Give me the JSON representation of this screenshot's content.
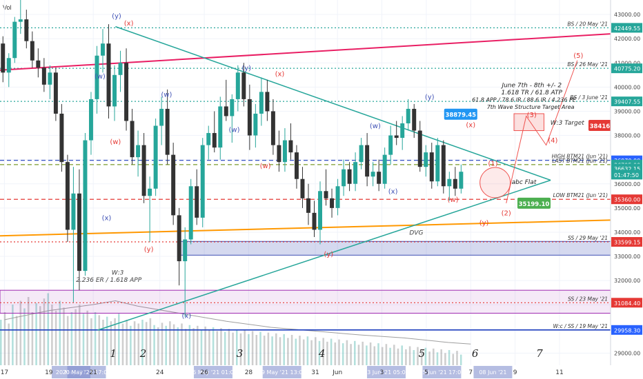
{
  "header": {
    "indicator_label": "Vol"
  },
  "chart_data": {
    "type": "candlestick",
    "title": "",
    "xlabel": "",
    "ylabel": "",
    "ylim": [
      28500,
      43600
    ],
    "y_ticks": [
      29000,
      30000,
      31000,
      32000,
      33000,
      34000,
      35000,
      36000,
      37000,
      38000,
      39000,
      40000,
      41000,
      42000,
      43000
    ],
    "x_ticks": [
      {
        "label": "17",
        "x": 0
      },
      {
        "label": "19",
        "x": 2
      },
      {
        "label": "21",
        "x": 4
      },
      {
        "label": "24",
        "x": 7
      },
      {
        "label": "26",
        "x": 9
      },
      {
        "label": "28",
        "x": 11
      },
      {
        "label": "31",
        "x": 14
      },
      {
        "label": "Jun",
        "x": 15
      },
      {
        "label": "3",
        "x": 17
      },
      {
        "label": "5",
        "x": 19
      },
      {
        "label": "7",
        "x": 21
      },
      {
        "label": "9",
        "x": 23
      },
      {
        "label": "11",
        "x": 25
      }
    ],
    "x_range": [
      -0.2,
      27.3
    ],
    "last_candle_x": 20.7,
    "date_highlights": [
      {
        "label": "20 May '21",
        "x": 3.0
      },
      {
        "label": "20 May '21 17:00",
        "x": 3.7
      },
      {
        "label": "26 May '21 01:00",
        "x": 9.4
      },
      {
        "label": "29 May '21 13:00",
        "x": 12.5
      },
      {
        "label": "03 Jun '21 05:00",
        "x": 17.2
      },
      {
        "label": "05 Jun '21 17:00",
        "x": 19.7
      },
      {
        "label": "08 Jun '21",
        "x": 22.0
      }
    ],
    "candles_ohlc": [
      [
        41800,
        42100,
        40200,
        40600
      ],
      [
        40600,
        41400,
        40000,
        41200
      ],
      [
        41200,
        42900,
        41000,
        42700
      ],
      [
        42700,
        43600,
        42200,
        42800
      ],
      [
        42800,
        43200,
        41600,
        41900
      ],
      [
        41900,
        42300,
        40800,
        41100
      ],
      [
        41100,
        41600,
        40400,
        40800
      ],
      [
        40800,
        41200,
        39800,
        40100
      ],
      [
        40100,
        40900,
        39500,
        40600
      ],
      [
        40600,
        40800,
        38600,
        38900
      ],
      [
        38900,
        39300,
        36500,
        36900
      ],
      [
        36900,
        37200,
        33600,
        34100
      ],
      [
        34100,
        36700,
        31100,
        35600
      ],
      [
        35600,
        36600,
        31600,
        32400
      ],
      [
        32400,
        38100,
        32200,
        37800
      ],
      [
        37800,
        39800,
        37200,
        39500
      ],
      [
        39500,
        41700,
        38900,
        41300
      ],
      [
        41300,
        42400,
        40600,
        41800
      ],
      [
        41800,
        42600,
        38700,
        39200
      ],
      [
        39200,
        40900,
        38600,
        40500
      ],
      [
        40500,
        41500,
        39800,
        41000
      ],
      [
        41000,
        41600,
        38200,
        38600
      ],
      [
        38600,
        39100,
        36800,
        37100
      ],
      [
        37100,
        38200,
        36300,
        37600
      ],
      [
        37600,
        38100,
        35200,
        35500
      ],
      [
        35500,
        36300,
        33600,
        35800
      ],
      [
        35800,
        38700,
        35500,
        38400
      ],
      [
        38400,
        39600,
        37600,
        39100
      ],
      [
        39100,
        39900,
        36800,
        37200
      ],
      [
        37200,
        37700,
        34300,
        34700
      ],
      [
        34700,
        35000,
        31800,
        32800
      ],
      [
        32800,
        34200,
        30500,
        33700
      ],
      [
        33700,
        36200,
        33500,
        35900
      ],
      [
        35900,
        36600,
        34300,
        34600
      ],
      [
        34600,
        37900,
        34200,
        37600
      ],
      [
        37600,
        38400,
        37000,
        38100
      ],
      [
        38100,
        39000,
        37300,
        37500
      ],
      [
        37500,
        39600,
        37000,
        39200
      ],
      [
        39200,
        40300,
        38600,
        38800
      ],
      [
        38800,
        39700,
        37700,
        39500
      ],
      [
        39500,
        40900,
        39000,
        40600
      ],
      [
        40600,
        41000,
        39200,
        39500
      ],
      [
        39500,
        40100,
        37400,
        38000
      ],
      [
        38000,
        39300,
        37500,
        38900
      ],
      [
        38900,
        40400,
        38400,
        39800
      ],
      [
        39800,
        40300,
        38600,
        39000
      ],
      [
        39000,
        39500,
        37200,
        37600
      ],
      [
        37600,
        38200,
        36500,
        36900
      ],
      [
        36900,
        38300,
        36500,
        37800
      ],
      [
        37800,
        38500,
        37000,
        37300
      ],
      [
        37300,
        37600,
        35800,
        36200
      ],
      [
        36200,
        36700,
        35000,
        35400
      ],
      [
        35400,
        36000,
        34300,
        34800
      ],
      [
        34800,
        35300,
        33800,
        34100
      ],
      [
        34100,
        36100,
        33500,
        35700
      ],
      [
        35700,
        36600,
        35100,
        35400
      ],
      [
        35400,
        35800,
        34600,
        35000
      ],
      [
        35000,
        36200,
        34700,
        35900
      ],
      [
        35900,
        37000,
        35500,
        36600
      ],
      [
        36600,
        36900,
        35700,
        36000
      ],
      [
        36000,
        37300,
        35700,
        36900
      ],
      [
        36900,
        37900,
        36600,
        37600
      ],
      [
        37600,
        38100,
        35900,
        36300
      ],
      [
        36300,
        36900,
        35900,
        36500
      ],
      [
        36500,
        37000,
        35700,
        36000
      ],
      [
        36000,
        37500,
        35800,
        37200
      ],
      [
        37200,
        38400,
        36800,
        38000
      ],
      [
        38000,
        38600,
        37600,
        37900
      ],
      [
        37900,
        38800,
        37400,
        38500
      ],
      [
        38500,
        39500,
        38200,
        39100
      ],
      [
        39100,
        39300,
        37900,
        38200
      ],
      [
        38200,
        38600,
        36500,
        36700
      ],
      [
        36700,
        37600,
        36300,
        37300
      ],
      [
        37300,
        37700,
        35800,
        36100
      ],
      [
        36100,
        37900,
        35900,
        37600
      ],
      [
        37600,
        37800,
        35600,
        35900
      ],
      [
        35900,
        36500,
        35300,
        36200
      ],
      [
        36200,
        36700,
        35500,
        35800
      ],
      [
        35800,
        36800,
        35600,
        36500
      ]
    ],
    "volume": {
      "y_scale_max": 100,
      "bars": [
        60,
        70,
        55,
        80,
        65,
        85,
        75,
        90,
        70,
        82,
        78,
        88,
        95,
        80,
        72,
        85,
        76,
        65,
        70,
        74,
        80,
        68,
        72,
        62,
        70,
        66,
        60,
        64,
        58,
        62,
        68,
        55,
        60,
        52,
        58,
        55,
        60,
        57,
        62,
        53,
        50,
        56,
        52,
        58,
        54,
        50,
        55,
        48,
        53,
        49,
        52,
        47,
        51,
        46,
        50,
        45,
        49,
        44,
        48,
        43,
        47,
        42,
        46,
        41,
        45,
        40,
        44,
        39,
        43,
        38,
        42,
        37,
        41,
        36,
        40,
        35,
        39,
        34,
        38,
        33,
        37,
        32,
        36,
        31,
        35,
        30,
        34,
        29,
        33,
        28,
        32,
        27,
        31,
        26,
        30,
        25,
        29,
        24,
        28,
        23,
        27,
        22,
        26,
        21,
        25,
        20,
        24,
        19,
        23,
        18,
        22,
        17,
        21,
        16,
        20,
        15,
        19,
        14
      ],
      "ma_line": [
        [
          0,
          60
        ],
        [
          2,
          72
        ],
        [
          4,
          80
        ],
        [
          5,
          85
        ],
        [
          6,
          78
        ],
        [
          8,
          68
        ],
        [
          10,
          58
        ],
        [
          12,
          50
        ],
        [
          14,
          45
        ],
        [
          16,
          40
        ],
        [
          18,
          36
        ],
        [
          20,
          30
        ],
        [
          21,
          28
        ]
      ]
    },
    "levels": [
      {
        "label": "BS / 20 May '21",
        "value": 42449.55,
        "color": "#26a69a",
        "style": "dotted",
        "price_tag_color": "#26a69a"
      },
      {
        "label": "BS / 26 May '21",
        "value": 40775.2,
        "color": "#26a69a",
        "style": "dotted",
        "price_tag_color": "#26a69a"
      },
      {
        "label": "BS / 3 June '21",
        "value": 39407.55,
        "color": "#26a69a",
        "style": "dotted",
        "price_tag_color": "#26a69a"
      },
      {
        "label": "HIGH BTM21 (Jun '21)",
        "value": 36970.0,
        "color": "#1e3fbf",
        "style": "dashed",
        "price_tag_color": "#2962ff"
      },
      {
        "label": "LAST BTM21 (Jun '21)",
        "value": 36795.0,
        "color": "#7a9a2a",
        "style": "dashed",
        "price_tag_color": "#26a69a"
      },
      {
        "label": "LOW BTM21 (Jun '21)",
        "value": 35360.0,
        "color": "#e53935",
        "style": "dashed",
        "price_tag_color": "#e53935"
      },
      {
        "label": "SS / 29 May '21",
        "value": 33599.15,
        "color": "#e53935",
        "style": "dotted",
        "price_tag_color": "#e53935"
      },
      {
        "label": "SS / 23 May '21",
        "value": 31084.4,
        "color": "#e53935",
        "style": "dotted",
        "price_tag_color": "#e53935"
      },
      {
        "label": "W:c / SS / 19 May '21",
        "value": 29958.3,
        "color": "#1e3fbf",
        "style": "solid",
        "price_tag_color": "#2962ff"
      }
    ],
    "price_tags": [
      {
        "text": "43000.00",
        "value": 43000,
        "color": "none"
      },
      {
        "text": "42449.55",
        "value": 42449.55,
        "color": "#26a69a"
      },
      {
        "text": "42000.00",
        "value": 42000,
        "color": "none"
      },
      {
        "text": "41000.00",
        "value": 41000,
        "color": "none"
      },
      {
        "text": "40775.20",
        "value": 40775.2,
        "color": "#26a69a"
      },
      {
        "text": "40000.00",
        "value": 40000,
        "color": "none"
      },
      {
        "text": "39407.55",
        "value": 39407.55,
        "color": "#26a69a"
      },
      {
        "text": "39000.00",
        "value": 39000,
        "color": "none"
      },
      {
        "text": "38000.00",
        "value": 38000,
        "color": "none"
      },
      {
        "text": "36970.00",
        "value": 36970,
        "color": "#2962ff"
      },
      {
        "text": "36795.00",
        "value": 36795,
        "color": "#26a69a"
      },
      {
        "text": "36632.15",
        "value": 36632.15,
        "color": "#26a69a"
      },
      {
        "text": "01:47:50",
        "value": 36380,
        "color": "#26a69a"
      },
      {
        "text": "36000.00",
        "value": 36000,
        "color": "none"
      },
      {
        "text": "35360.00",
        "value": 35360,
        "color": "#e53935"
      },
      {
        "text": "35000.00",
        "value": 35000,
        "color": "none"
      },
      {
        "text": "34000.00",
        "value": 34000,
        "color": "none"
      },
      {
        "text": "33599.15",
        "value": 33599.15,
        "color": "#e53935"
      },
      {
        "text": "33000.00",
        "value": 33000,
        "color": "none"
      },
      {
        "text": "32000.00",
        "value": 32000,
        "color": "none"
      },
      {
        "text": "31084.40",
        "value": 31084.4,
        "color": "#e53935"
      },
      {
        "text": "29958.30",
        "value": 29958.3,
        "color": "#2962ff"
      },
      {
        "text": "29000.00",
        "value": 29000,
        "color": "none"
      }
    ],
    "trendlines": [
      {
        "name": "red-resistance",
        "color": "#e91e63",
        "from": [
          -0.2,
          40700
        ],
        "to": [
          27.3,
          42200
        ],
        "width": 2
      },
      {
        "name": "orange-support",
        "color": "#ff9800",
        "from": [
          -0.2,
          33850
        ],
        "to": [
          27.3,
          34500
        ],
        "width": 2
      },
      {
        "name": "triangle-upper",
        "color": "#26a69a",
        "from": [
          5.0,
          42500
        ],
        "to": [
          24.6,
          36150
        ],
        "width": 1.5
      },
      {
        "name": "triangle-lower",
        "color": "#26a69a",
        "from": [
          4.2,
          29950
        ],
        "to": [
          24.6,
          36150
        ],
        "width": 1.5
      }
    ],
    "zones": [
      {
        "name": "ss-29may-zone",
        "x_from": 7.8,
        "x_to": 27.3,
        "y_from": 33050,
        "y_to": 33620,
        "fill": "rgba(63,81,181,0.22)",
        "border": "#3f51b5"
      },
      {
        "name": "ss-23may-zone",
        "x_from": -0.2,
        "x_to": 27.3,
        "y_from": 30650,
        "y_to": 31600,
        "fill": "rgba(156,39,176,0.10)",
        "border": "#9c27b0"
      }
    ],
    "wave_labels": [
      {
        "text": "(y)",
        "x": 5.05,
        "y": 42850,
        "color": "#3f51b5"
      },
      {
        "text": "(x)",
        "x": 5.6,
        "y": 42550,
        "color": "#e53935"
      },
      {
        "text": "(w)",
        "x": 4.3,
        "y": 40350,
        "color": "#3f51b5"
      },
      {
        "text": "(w)",
        "x": 7.3,
        "y": 39600,
        "color": "#3f51b5"
      },
      {
        "text": "(w)",
        "x": 5.0,
        "y": 37650,
        "color": "#e53935"
      },
      {
        "text": "(x)",
        "x": 4.6,
        "y": 34500,
        "color": "#3f51b5"
      },
      {
        "text": "(y)",
        "x": 6.5,
        "y": 33200,
        "color": "#e53935"
      },
      {
        "text": "(x)",
        "x": 8.2,
        "y": 30450,
        "color": "#3f51b5"
      },
      {
        "text": "(y)",
        "x": 10.9,
        "y": 40700,
        "color": "#3f51b5"
      },
      {
        "text": "(x)",
        "x": 12.4,
        "y": 40450,
        "color": "#e53935"
      },
      {
        "text": "(w)",
        "x": 10.35,
        "y": 38150,
        "color": "#3f51b5"
      },
      {
        "text": "(w)",
        "x": 11.75,
        "y": 36650,
        "color": "#e53935"
      },
      {
        "text": "(y)",
        "x": 14.6,
        "y": 33000,
        "color": "#e53935"
      },
      {
        "text": "(w)",
        "x": 16.7,
        "y": 38300,
        "color": "#3f51b5"
      },
      {
        "text": "(x)",
        "x": 17.5,
        "y": 35600,
        "color": "#3f51b5"
      },
      {
        "text": "(y)",
        "x": 19.15,
        "y": 39500,
        "color": "#3f51b5"
      },
      {
        "text": "(x)",
        "x": 21.0,
        "y": 38350,
        "color": "#e53935"
      },
      {
        "text": "(w)",
        "x": 20.2,
        "y": 35250,
        "color": "#e53935"
      },
      {
        "text": "(y)",
        "x": 21.6,
        "y": 34300,
        "color": "#e53935"
      },
      {
        "text": "(1)",
        "x": 22.0,
        "y": 36750,
        "color": "#e53935"
      },
      {
        "text": "(2)",
        "x": 22.6,
        "y": 34700,
        "color": "#e53935"
      },
      {
        "text": "(3)",
        "x": 23.75,
        "y": 38750,
        "color": "#e53935"
      },
      {
        "text": "(4)",
        "x": 24.7,
        "y": 37700,
        "color": "#e53935"
      },
      {
        "text": "(5)",
        "x": 25.85,
        "y": 41200,
        "color": "#e53935"
      }
    ],
    "cycle_numbers": [
      {
        "text": "1",
        "x": 4.9
      },
      {
        "text": "2",
        "x": 6.25
      },
      {
        "text": "3",
        "x": 10.6
      },
      {
        "text": "4",
        "x": 14.3
      },
      {
        "text": "5",
        "x": 18.8
      },
      {
        "text": "6",
        "x": 21.2
      },
      {
        "text": "7",
        "x": 24.1
      }
    ],
    "annotations": [
      {
        "text": "June 7th - 8th +/- 2",
        "x": 23.75,
        "y": 40000,
        "color": "#222"
      },
      {
        "text": "1.618 TR / 61.8 ATP",
        "x": 23.75,
        "y": 39700,
        "color": "#222"
      },
      {
        "text": "61.8 APP / 78.6 IR / 88.6 IR / 4.236 PE",
        "x": 23.4,
        "y": 39400,
        "color": "#222"
      },
      {
        "text": "7th Wave Structure Target Area",
        "x": 23.7,
        "y": 39100,
        "color": "#222"
      },
      {
        "text": "W:3 Target",
        "x": 25.35,
        "y": 38450,
        "color": "#333"
      },
      {
        "text": "abc Flat",
        "x": 23.4,
        "y": 36000,
        "color": "#222"
      },
      {
        "text": "DVG",
        "x": 18.55,
        "y": 33900,
        "color": "#444"
      },
      {
        "text": "W:3",
        "x": 5.1,
        "y": 32250,
        "color": "#444"
      },
      {
        "text": "2.236 ER / 1.618 APP",
        "x": 4.7,
        "y": 31950,
        "color": "#444"
      }
    ],
    "tags_in_plot": [
      {
        "text": "38879.45",
        "x": 20.55,
        "y": 38879.45,
        "color": "#2196f3"
      },
      {
        "text": "38416.15",
        "x": 27.05,
        "y": 38416.15,
        "color": "#e53935"
      },
      {
        "text": "35199.10",
        "x": 23.85,
        "y": 35199.1,
        "color": "#4caf50"
      }
    ],
    "projection_path": [
      [
        22.6,
        35200
      ],
      [
        23.5,
        38800
      ],
      [
        24.4,
        37600
      ],
      [
        25.8,
        41100
      ]
    ],
    "target_box": {
      "x_from": 22.95,
      "x_to": 24.3,
      "y_from": 38200,
      "y_to": 38900
    }
  },
  "colors": {
    "up": "#26a69a",
    "down": "#333333",
    "grid": "#f0f3fa"
  }
}
